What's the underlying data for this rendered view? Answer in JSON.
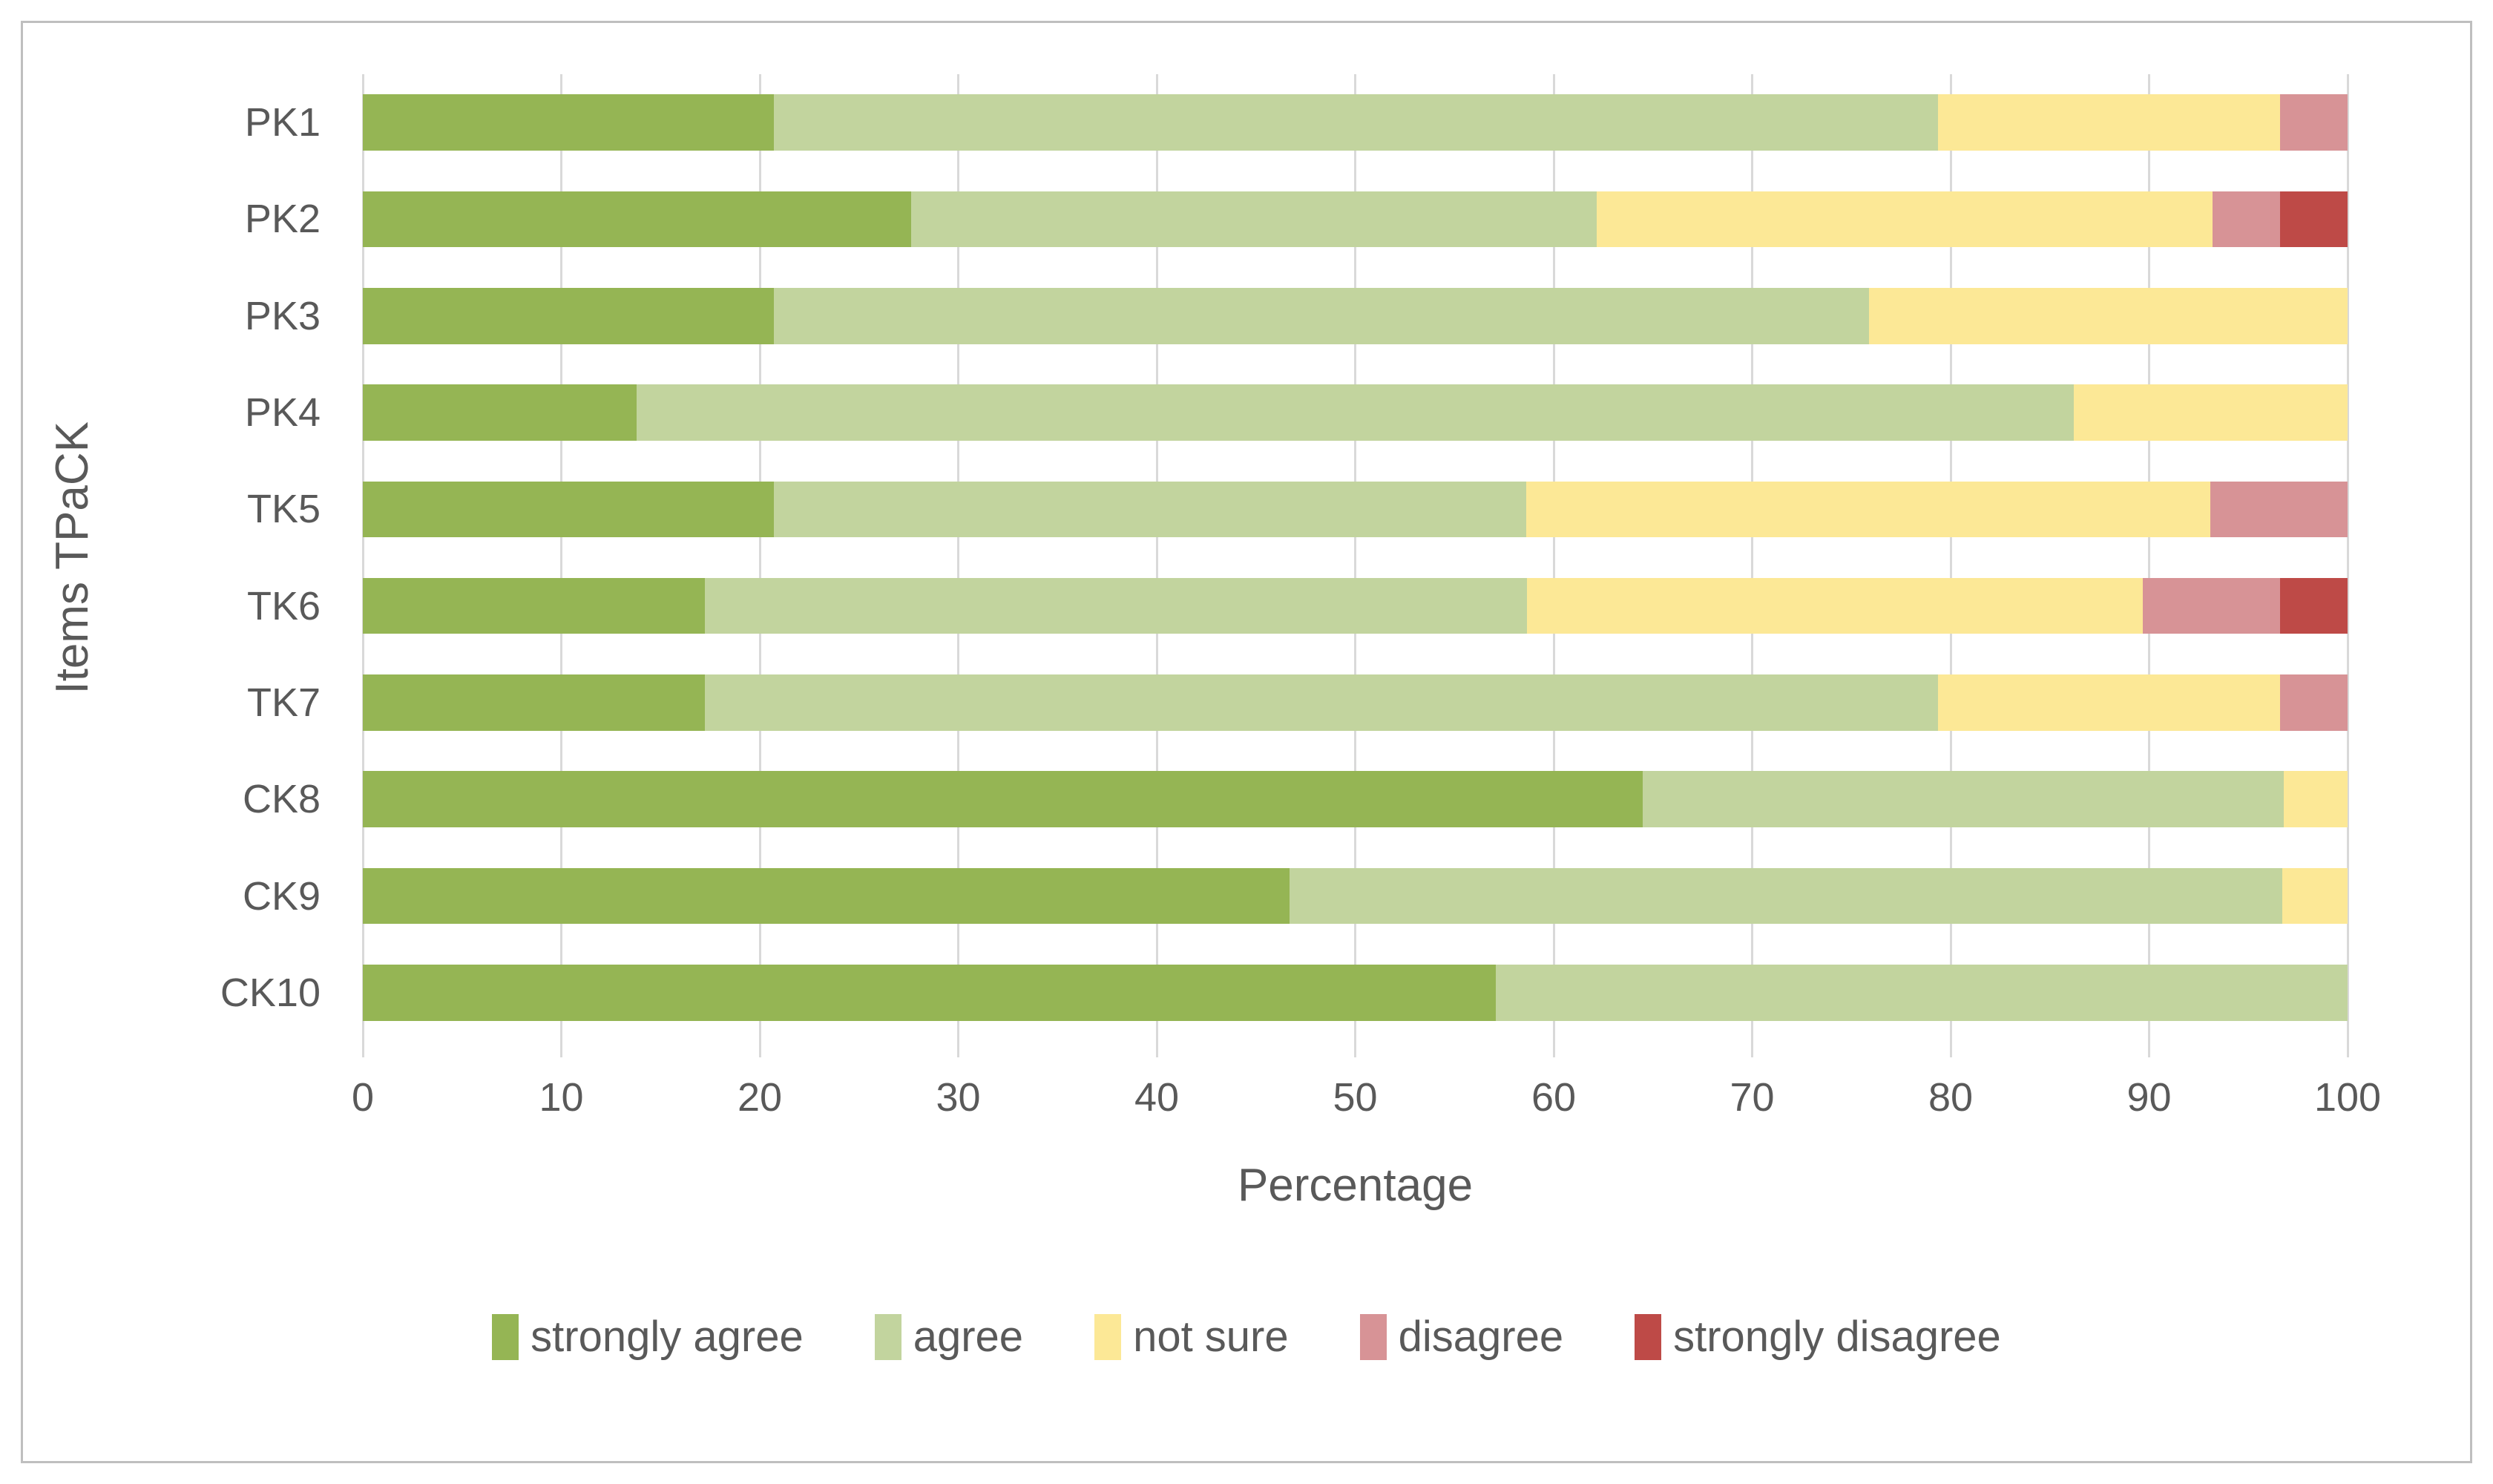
{
  "figure": {
    "background": "#FFFFFF",
    "border_color": "#BFBFBF",
    "gridline_color": "#D9D9D9",
    "text_color": "#595959"
  },
  "chart_data": {
    "type": "bar",
    "orientation": "horizontal-stacked",
    "title": "",
    "xlabel": "Percentage",
    "ylabel": "Items TPaCK",
    "xlim": [
      0,
      100
    ],
    "x_ticks": [
      0,
      10,
      20,
      30,
      40,
      50,
      60,
      70,
      80,
      90,
      100
    ],
    "grid": "vertical",
    "legend_position": "bottom",
    "categories": [
      "PK1",
      "PK2",
      "PK3",
      "PK4",
      "TK5",
      "TK6",
      "TK7",
      "CK8",
      "CK9",
      "CK10"
    ],
    "series": [
      {
        "name": "strongly agree",
        "color": "#95B554",
        "values": [
          20.7,
          27.6,
          20.7,
          13.8,
          20.7,
          17.2,
          17.2,
          64.5,
          46.7,
          57.1
        ]
      },
      {
        "name": "agree",
        "color": "#C2D49E",
        "values": [
          58.6,
          34.5,
          55.2,
          72.4,
          37.9,
          41.4,
          62.1,
          32.3,
          50.0,
          42.9
        ]
      },
      {
        "name": "not sure",
        "color": "#FCE896",
        "values": [
          17.2,
          31.0,
          24.1,
          13.8,
          34.5,
          31.0,
          17.2,
          3.2,
          3.3,
          0
        ]
      },
      {
        "name": "disagree",
        "color": "#D79396",
        "values": [
          3.4,
          3.4,
          0,
          0,
          6.9,
          6.9,
          3.4,
          0,
          0,
          0
        ]
      },
      {
        "name": "strongly disagree",
        "color": "#BE4A47",
        "values": [
          0,
          3.4,
          0,
          0,
          0,
          3.4,
          0,
          0,
          0,
          0
        ]
      }
    ]
  }
}
